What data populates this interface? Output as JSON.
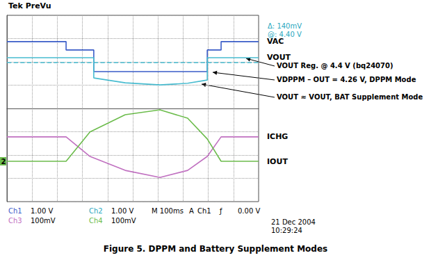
{
  "chart_data": {
    "type": "line",
    "title": "Figure 5. DPPM and Battery Supplement Modes",
    "header": "Tek PreVu",
    "readouts": [
      "Δ: 140mV",
      "@: 4.40 V"
    ],
    "channel_marker": "2",
    "xlim": [
      0,
      10
    ],
    "xticks": [
      0,
      1,
      2,
      3,
      4,
      5,
      6,
      7,
      8,
      9,
      10
    ],
    "ylim": [
      -4,
      4
    ],
    "yticks": [
      -4,
      -3,
      -2,
      -1,
      0,
      1,
      2,
      3,
      4
    ],
    "grid": true,
    "tick_labels": false,
    "series": [
      {
        "name": "VAC",
        "color": "#3a5cc8",
        "x": [
          0,
          2.35,
          2.35,
          3.45,
          3.45,
          7.96,
          7.96,
          8.51,
          8.51,
          10
        ],
        "values": [
          2.87,
          2.87,
          2.51,
          2.51,
          1.58,
          1.58,
          2.51,
          2.51,
          2.87,
          2.87
        ]
      },
      {
        "name": "VOUT",
        "color": "#48bcd0",
        "x": [
          0,
          3.45,
          3.45,
          4.7,
          6.08,
          7.18,
          7.96,
          7.96,
          10
        ],
        "values": [
          2.18,
          2.18,
          1.31,
          1.1,
          1.01,
          1.08,
          1.22,
          2.18,
          2.18
        ]
      },
      {
        "color": "#48bcd0",
        "line_style": "dashed",
        "x": [
          0,
          10
        ],
        "values": [
          1.97,
          1.97
        ]
      },
      {
        "name": "ICHG",
        "color": "#c070c0",
        "x": [
          0,
          2.35,
          3.3,
          4.7,
          6.08,
          7.18,
          7.96,
          8.51,
          10
        ],
        "values": [
          -1.22,
          -1.22,
          -2.06,
          -2.66,
          -2.96,
          -2.66,
          -2.06,
          -1.22,
          -1.22
        ]
      },
      {
        "name": "IOUT",
        "color": "#6cbc4c",
        "x": [
          0,
          2.35,
          3.3,
          4.7,
          6.08,
          7.18,
          7.96,
          8.51,
          10
        ],
        "values": [
          -2.27,
          -2.27,
          -1.01,
          -0.27,
          -0.06,
          -0.42,
          -1.31,
          -2.27,
          -2.27
        ]
      }
    ],
    "annotations": [
      "VOUT Reg. @ 4.4 V (bq24070)",
      "VDPPM – OUT = 4.26 V, DPPM Mode",
      "VOUT ≈ VOUT, BAT Supplement Mode"
    ],
    "status_rows": [
      [
        "Ch1",
        "1.00 V",
        "Ch2",
        "1.00 V",
        "M 100ms",
        "A",
        "Ch1",
        "ƒ",
        "0.00 V"
      ],
      [
        "Ch3",
        "100mV",
        "Ch4",
        "100mV"
      ]
    ],
    "timestamp": [
      "21 Dec 2004",
      "10:29:24"
    ]
  }
}
